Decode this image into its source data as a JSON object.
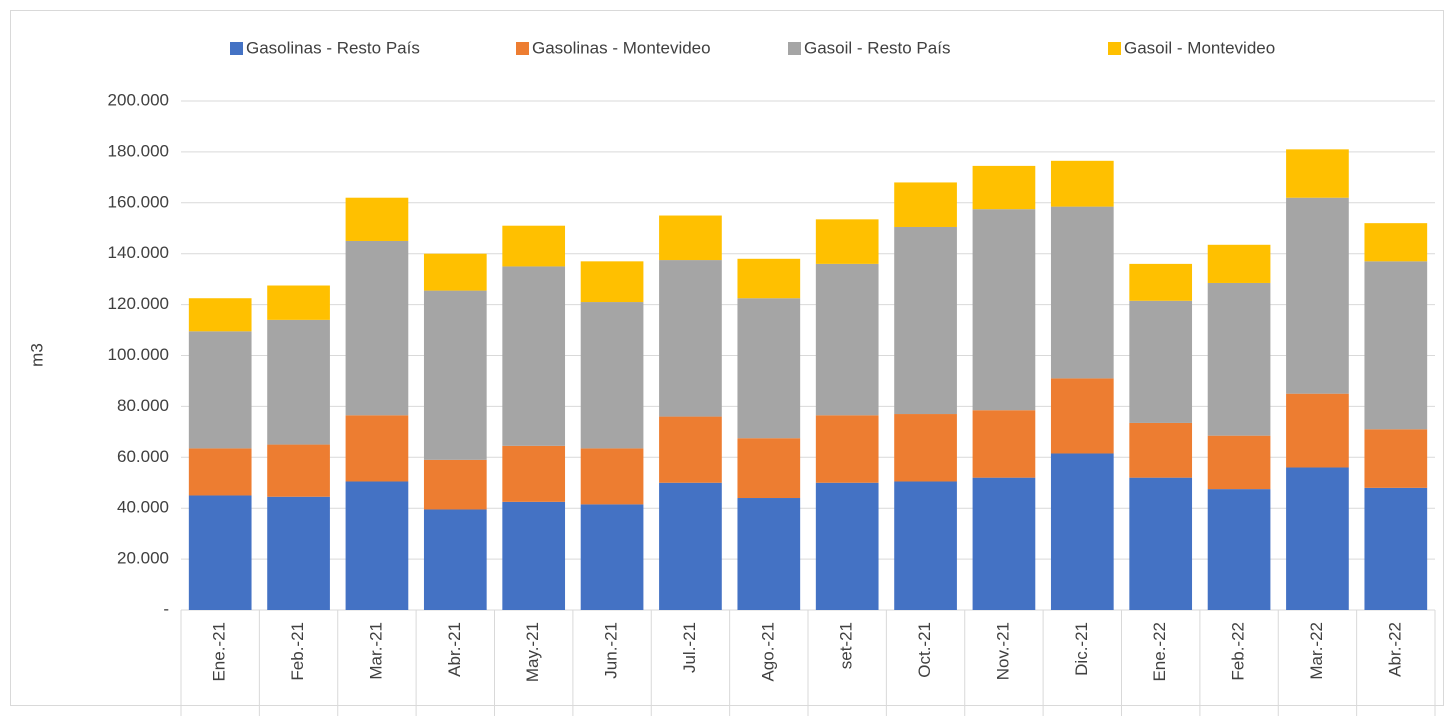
{
  "chart_data": {
    "type": "bar",
    "stacked": true,
    "ylabel": "m3",
    "categories": [
      "Ene.-21",
      "Feb.-21",
      "Mar.-21",
      "Abr.-21",
      "May.-21",
      "Jun.-21",
      "Jul.-21",
      "Ago.-21",
      "set-21",
      "Oct.-21",
      "Nov.-21",
      "Dic.-21",
      "Ene.-22",
      "Feb.-22",
      "Mar.-22",
      "Abr.-22"
    ],
    "series": [
      {
        "name": "Gasolinas - Resto País",
        "color": "#4472c4",
        "values": [
          45000,
          44500,
          50500,
          39500,
          42500,
          41500,
          50000,
          44000,
          50000,
          50500,
          52000,
          61500,
          52000,
          47500,
          56000,
          48000
        ]
      },
      {
        "name": "Gasolinas - Montevideo",
        "color": "#ed7d31",
        "values": [
          18500,
          20500,
          26000,
          19500,
          22000,
          22000,
          26000,
          23500,
          26500,
          26500,
          26500,
          29500,
          21500,
          21000,
          29000,
          23000
        ]
      },
      {
        "name": "Gasoil - Resto País",
        "color": "#a5a5a5",
        "values": [
          46000,
          49000,
          68500,
          66500,
          70500,
          57500,
          61500,
          55000,
          59500,
          73500,
          79000,
          67500,
          48000,
          60000,
          77000,
          66000
        ]
      },
      {
        "name": "Gasoil - Montevideo",
        "color": "#ffc000",
        "values": [
          13000,
          13500,
          17000,
          14500,
          16000,
          16000,
          17500,
          15500,
          17500,
          17500,
          17000,
          18000,
          14500,
          15000,
          19000,
          15000
        ]
      }
    ],
    "ylim": [
      0,
      200000
    ],
    "yticks": [
      {
        "value": 0,
        "label": "-"
      },
      {
        "value": 20000,
        "label": "20.000"
      },
      {
        "value": 40000,
        "label": "40.000"
      },
      {
        "value": 60000,
        "label": "60.000"
      },
      {
        "value": 80000,
        "label": "80.000"
      },
      {
        "value": 100000,
        "label": "100.000"
      },
      {
        "value": 120000,
        "label": "120.000"
      },
      {
        "value": 140000,
        "label": "140.000"
      },
      {
        "value": 160000,
        "label": "160.000"
      },
      {
        "value": 180000,
        "label": "180.000"
      },
      {
        "value": 200000,
        "label": "200.000"
      }
    ],
    "grid": true,
    "legend": "top"
  }
}
